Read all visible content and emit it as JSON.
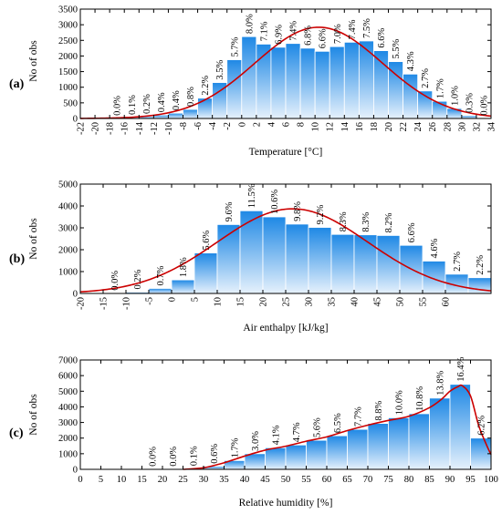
{
  "chart_data": [
    {
      "panel_label": "(a)",
      "type": "bar",
      "xlabel": "Temperature [°C]",
      "ylabel": "No of obs",
      "ylim": [
        0,
        3500
      ],
      "yticks": [
        0,
        500,
        1000,
        1500,
        2000,
        2500,
        3000,
        3500
      ],
      "xlim": [
        -22,
        34
      ],
      "xticks": [
        -22,
        -20,
        -18,
        -16,
        -14,
        -12,
        -10,
        -8,
        -6,
        -4,
        -2,
        0,
        2,
        4,
        6,
        8,
        10,
        12,
        14,
        16,
        18,
        20,
        22,
        24,
        26,
        28,
        30,
        32,
        34
      ],
      "bin_width": 2,
      "x": [
        -18,
        -16,
        -14,
        -12,
        -10,
        -8,
        -6,
        -4,
        -2,
        0,
        2,
        4,
        6,
        8,
        10,
        12,
        14,
        16,
        18,
        20,
        22,
        24,
        26,
        28,
        30,
        32
      ],
      "values": [
        5,
        30,
        60,
        110,
        170,
        290,
        650,
        1150,
        1880,
        2620,
        2380,
        2280,
        2400,
        2250,
        2150,
        2300,
        2440,
        2480,
        2170,
        1820,
        1420,
        880,
        550,
        320,
        90,
        12
      ],
      "labels": [
        "0.0%",
        "0.1%",
        "0.2%",
        "0.4%",
        "0.4%",
        "0.8%",
        "2.2%",
        "3.5%",
        "5.7%",
        "8.0%",
        "7.1%",
        "6.9%",
        "7.4%",
        "6.8%",
        "6.6%",
        "7.0%",
        "7.4%",
        "7.5%",
        "6.6%",
        "5.5%",
        "4.3%",
        "2.7%",
        "1.7%",
        "1.0%",
        "0.3%",
        "0.0%"
      ],
      "curve": {
        "type": "normal",
        "mean": 10.5,
        "sd": 8.7,
        "peak": 2920
      },
      "colors": {
        "bar_top": "#1e88e5",
        "bar_bottom": "#e6f1fc",
        "curve": "#cc0000"
      },
      "grid": false
    },
    {
      "panel_label": "(b)",
      "type": "bar",
      "xlabel": "Air enthalpy [kJ/kg]",
      "ylabel": "No of obs",
      "ylim": [
        0,
        5000
      ],
      "yticks": [
        0,
        1000,
        2000,
        3000,
        4000,
        5000
      ],
      "xlim": [
        -20,
        70
      ],
      "xticks": [
        -20,
        -15,
        -10,
        -5,
        0,
        5,
        10,
        15,
        20,
        25,
        30,
        35,
        40,
        45,
        50,
        55,
        60
      ],
      "bin_width": 5,
      "x": [
        -15,
        -10,
        -5,
        0,
        5,
        10,
        15,
        20,
        25,
        30,
        35,
        40,
        45,
        50,
        55,
        60,
        65
      ],
      "values": [
        10,
        60,
        230,
        620,
        1850,
        3150,
        3780,
        3500,
        3170,
        3020,
        2700,
        2680,
        2650,
        2200,
        1480,
        880,
        720
      ],
      "labels": [
        "0.0%",
        "0.2%",
        "0.7%",
        "1.8%",
        "5.6%",
        "9.6%",
        "11.5%",
        "10.6%",
        "9.8%",
        "9.2%",
        "8.3%",
        "8.3%",
        "8.2%",
        "6.6%",
        "4.6%",
        "2.7%",
        "2.2%"
      ],
      "curve": {
        "type": "normal",
        "mean": 26.5,
        "sd": 16.5,
        "peak": 3870
      },
      "colors": {
        "bar_top": "#1e88e5",
        "bar_bottom": "#e6f1fc",
        "curve": "#cc0000"
      },
      "grid": false
    },
    {
      "panel_label": "(c)",
      "type": "bar",
      "xlabel": "Relative humidity [%]",
      "ylabel": "No of obs",
      "ylim": [
        0,
        7000
      ],
      "yticks": [
        0,
        1000,
        2000,
        3000,
        4000,
        5000,
        6000,
        7000
      ],
      "xlim": [
        0,
        100
      ],
      "xticks": [
        0,
        5,
        10,
        15,
        20,
        25,
        30,
        35,
        40,
        45,
        50,
        55,
        60,
        65,
        70,
        75,
        80,
        85,
        90,
        95,
        100
      ],
      "bin_width": 5,
      "x": [
        15,
        20,
        25,
        30,
        35,
        40,
        45,
        50,
        55,
        60,
        65,
        70,
        75,
        80,
        85,
        90,
        95
      ],
      "values": [
        5,
        15,
        40,
        190,
        560,
        1000,
        1380,
        1560,
        1860,
        2150,
        2560,
        2940,
        3300,
        3560,
        4560,
        5440,
        2000
      ],
      "labels": [
        "0.0%",
        "0.0%",
        "0.1%",
        "0.6%",
        "1.7%",
        "3.0%",
        "4.1%",
        "4.7%",
        "5.6%",
        "6.5%",
        "7.7%",
        "8.8%",
        "10.0%",
        "10.8%",
        "13.8%",
        "16.4%",
        "6.2%"
      ],
      "curve": {
        "type": "path",
        "x": [
          25,
          30,
          35,
          40,
          45,
          50,
          55,
          60,
          65,
          70,
          75,
          80,
          85,
          88,
          90,
          92,
          93,
          95,
          97,
          99,
          100
        ],
        "y": [
          0,
          100,
          420,
          850,
          1230,
          1480,
          1800,
          2080,
          2480,
          2830,
          3130,
          3400,
          3950,
          4500,
          5000,
          5300,
          5350,
          4700,
          2800,
          1500,
          950
        ]
      },
      "colors": {
        "bar_top": "#1e88e5",
        "bar_bottom": "#e6f1fc",
        "curve": "#cc0000"
      },
      "grid": false
    }
  ]
}
